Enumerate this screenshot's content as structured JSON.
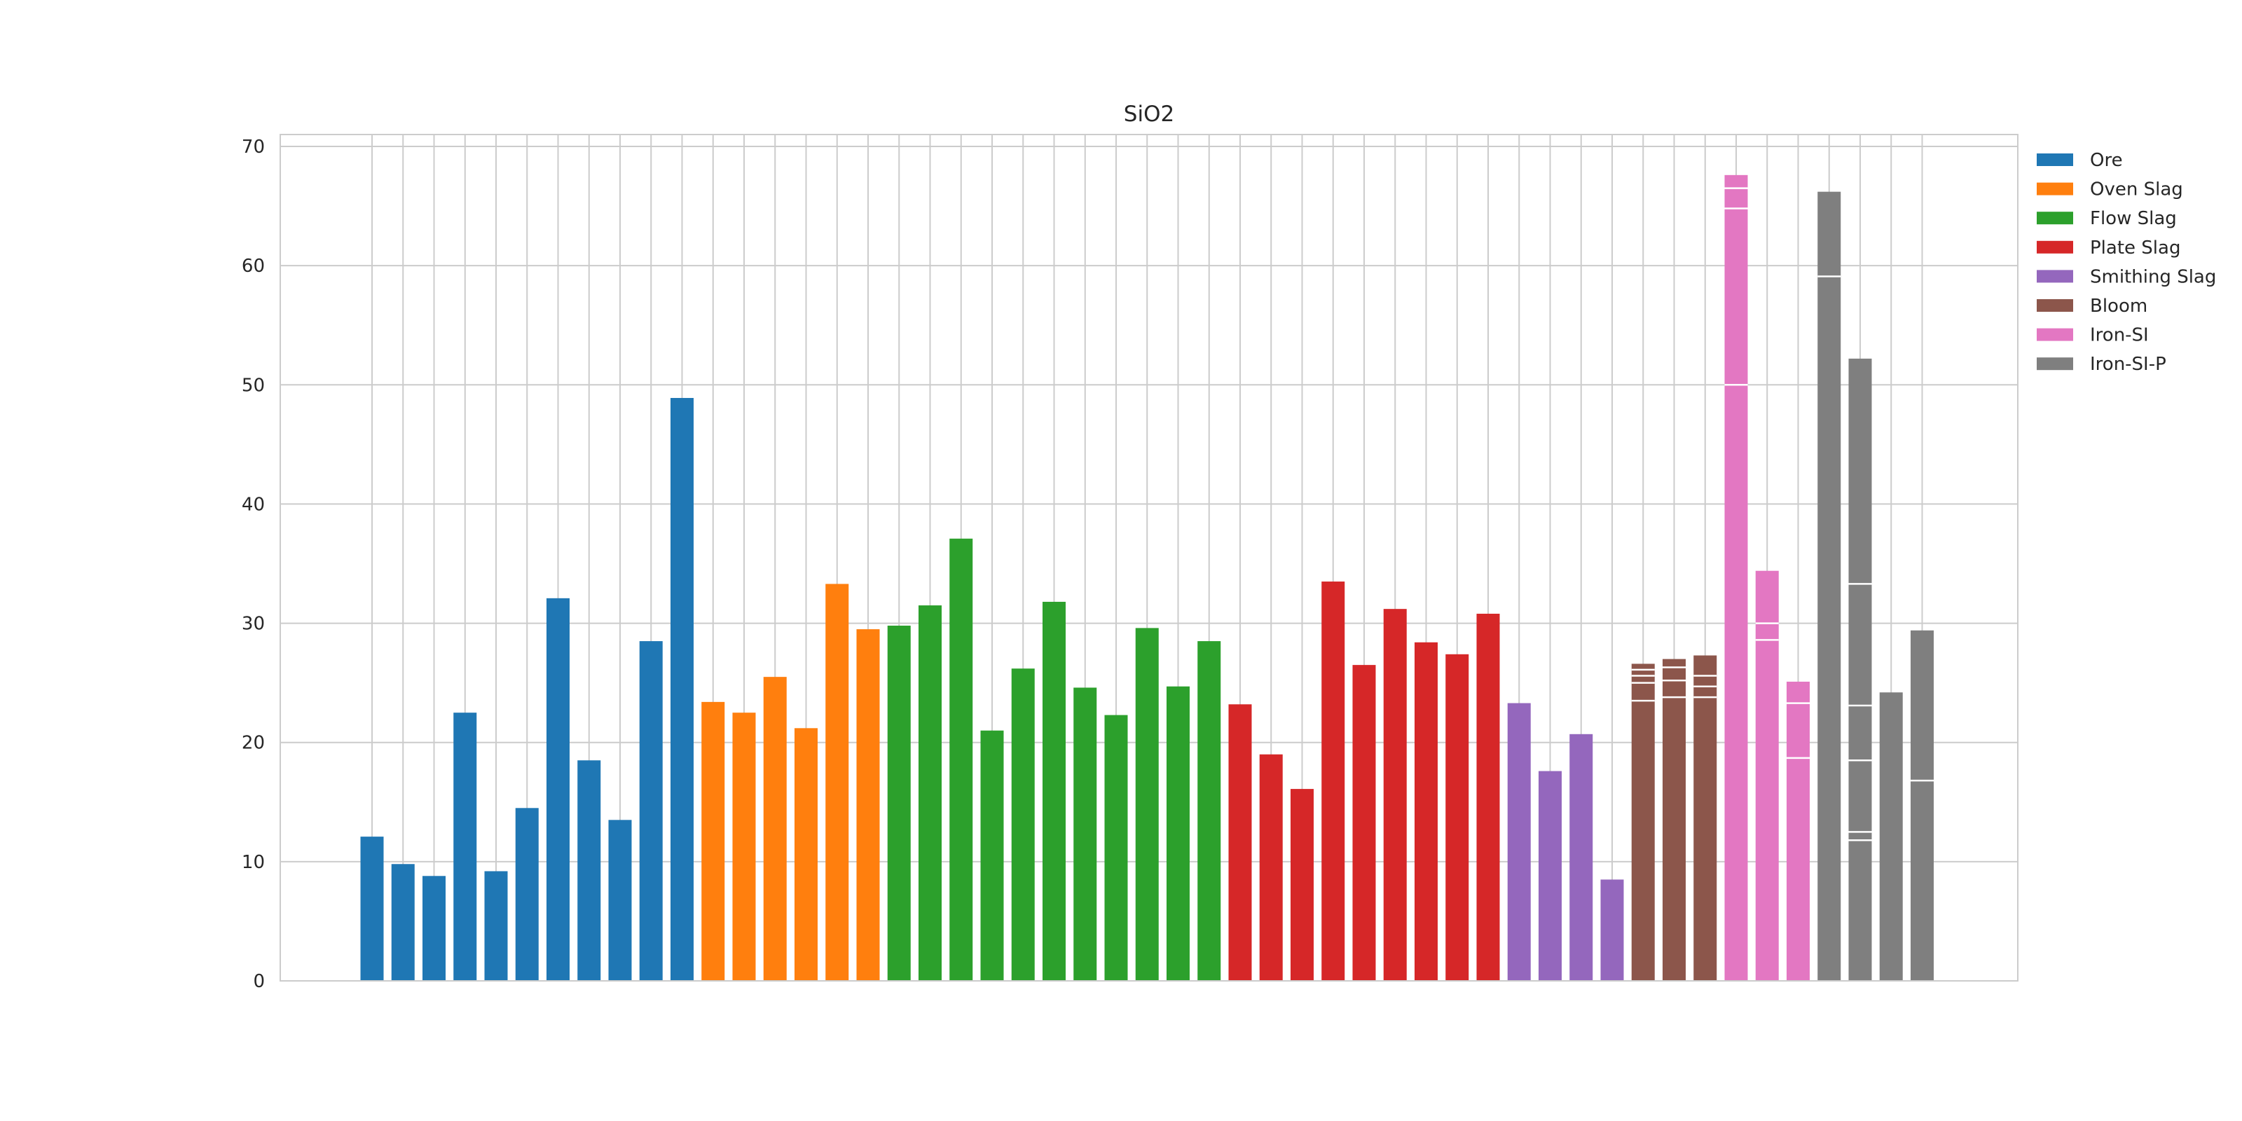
{
  "chart_data": {
    "type": "bar",
    "title": "SiO2",
    "xlabel": "",
    "ylabel": "",
    "ylim": [
      0,
      71
    ],
    "yticks": [
      0,
      10,
      20,
      30,
      40,
      50,
      60,
      70
    ],
    "grid": true,
    "legend_position": "outside-top-right",
    "series": [
      {
        "name": "Ore",
        "color": "#1f77b4",
        "bars": [
          [
            12.1
          ],
          [
            9.8
          ],
          [
            8.8
          ],
          [
            22.5
          ],
          [
            9.2
          ],
          [
            14.5
          ],
          [
            32.1
          ],
          [
            18.5
          ],
          [
            13.5
          ],
          [
            28.5
          ],
          [
            48.9
          ]
        ]
      },
      {
        "name": "Oven Slag",
        "color": "#ff7f0e",
        "bars": [
          [
            23.4
          ],
          [
            22.5
          ],
          [
            25.5
          ],
          [
            21.2
          ],
          [
            33.3
          ],
          [
            29.5
          ]
        ]
      },
      {
        "name": "Flow Slag",
        "color": "#2ca02c",
        "bars": [
          [
            29.8
          ],
          [
            31.5
          ],
          [
            37.1
          ],
          [
            21.0
          ],
          [
            26.2
          ],
          [
            31.8
          ],
          [
            24.6
          ],
          [
            22.3
          ],
          [
            29.6
          ],
          [
            24.7
          ],
          [
            28.5
          ]
        ]
      },
      {
        "name": "Plate Slag",
        "color": "#d62728",
        "bars": [
          [
            23.2
          ],
          [
            19.0
          ],
          [
            16.1
          ],
          [
            33.5
          ],
          [
            26.5
          ],
          [
            31.2
          ],
          [
            28.4
          ],
          [
            27.4
          ],
          [
            30.8
          ]
        ]
      },
      {
        "name": "Smithing Slag",
        "color": "#9467bd",
        "bars": [
          [
            23.3
          ],
          [
            17.6
          ],
          [
            20.7
          ],
          [
            8.5
          ]
        ]
      },
      {
        "name": "Bloom",
        "color": "#8c564b",
        "bars": [
          [
            23.5,
            25.0,
            25.6,
            26.1,
            26.6
          ],
          [
            23.8,
            25.2,
            26.3,
            27.0
          ],
          [
            23.8,
            24.7,
            25.6,
            27.3
          ]
        ]
      },
      {
        "name": "Iron-SI",
        "color": "#e377c2",
        "bars": [
          [
            50.0,
            64.8,
            66.5,
            67.6
          ],
          [
            28.6,
            30.0,
            34.4
          ],
          [
            18.7,
            23.3,
            25.1
          ]
        ]
      },
      {
        "name": "Iron-SI-P",
        "color": "#7f7f7f",
        "bars": [
          [
            59.1,
            66.2
          ],
          [
            11.8,
            12.5,
            18.5,
            23.1,
            33.3,
            52.2
          ],
          [
            24.2
          ],
          [
            16.8,
            29.4
          ]
        ]
      }
    ]
  }
}
